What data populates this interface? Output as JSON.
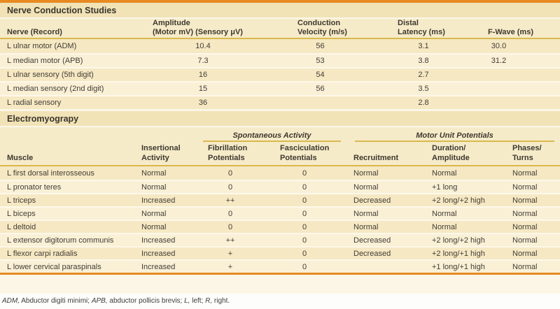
{
  "colors": {
    "accent_orange": "#e78a21",
    "rule_gold": "#d9b84e",
    "section_band_bg": "#f1e3b6",
    "header_band_bg": "#f6ebc9",
    "row_dark": "#f5e8c3",
    "row_light": "#f9f0d6",
    "text": "#433d35"
  },
  "ncs": {
    "title": "Nerve Conduction Studies",
    "headers": [
      {
        "line1": "",
        "line2": "Nerve (Record)"
      },
      {
        "line1": "Amplitude",
        "line2": "(Motor mV) (Sensory μV)"
      },
      {
        "line1": "Conduction",
        "line2": "Velocity (m/s)"
      },
      {
        "line1": "Distal",
        "line2": "Latency (ms)"
      },
      {
        "line1": "",
        "line2": "F-Wave (ms)"
      }
    ],
    "rows": [
      {
        "cells": [
          "L ulnar motor (ADM)",
          "10.4",
          "56",
          "3.1",
          "30.0"
        ]
      },
      {
        "cells": [
          "L median motor (APB)",
          "7.3",
          "53",
          "3.8",
          "31.2"
        ]
      },
      {
        "cells": [
          "L ulnar sensory (5th digit)",
          "16",
          "54",
          "2.7",
          ""
        ]
      },
      {
        "cells": [
          "L median sensory (2nd digit)",
          "15",
          "56",
          "3.5",
          ""
        ]
      },
      {
        "cells": [
          "L radial sensory",
          "36",
          "",
          "2.8",
          ""
        ]
      }
    ]
  },
  "emg": {
    "title": "Electromyograpy",
    "groups": {
      "spontaneous": "Spontaneous Activity",
      "motor_unit": "Motor Unit Potentials"
    },
    "headers": [
      {
        "line1": "",
        "line2": "Muscle"
      },
      {
        "line1": "Insertional",
        "line2": "Activity"
      },
      {
        "line1": "Fibrillation",
        "line2": "Potentials"
      },
      {
        "line1": "Fasciculation",
        "line2": "Potentials"
      },
      {
        "line1": "",
        "line2": "Recruitment"
      },
      {
        "line1": "Duration/",
        "line2": "Amplitude"
      },
      {
        "line1": "Phases/",
        "line2": "Turns"
      }
    ],
    "rows": [
      {
        "cells": [
          "L first dorsal interosseous",
          "Normal",
          "0",
          "0",
          "Normal",
          "Normal",
          "Normal"
        ]
      },
      {
        "cells": [
          "L pronator teres",
          "Normal",
          "0",
          "0",
          "Normal",
          "+1 long",
          "Normal"
        ]
      },
      {
        "cells": [
          "L triceps",
          "Increased",
          "++",
          "0",
          "Decreased",
          "+2 long/+2 high",
          "Normal"
        ]
      },
      {
        "cells": [
          "L biceps",
          "Normal",
          "0",
          "0",
          "Normal",
          "Normal",
          "Normal"
        ]
      },
      {
        "cells": [
          "L deltoid",
          "Normal",
          "0",
          "0",
          "Normal",
          "Normal",
          "Normal"
        ]
      },
      {
        "cells": [
          "L extensor digitorum communis",
          "Increased",
          "++",
          "0",
          "Decreased",
          "+2 long/+2 high",
          "Normal"
        ]
      },
      {
        "cells": [
          "L flexor carpi radialis",
          "Increased",
          "+",
          "0",
          "Decreased",
          "+2 long/+1 high",
          "Normal"
        ]
      },
      {
        "cells": [
          "L lower cervical paraspinals",
          "Increased",
          "+",
          "0",
          "",
          "+1 long/+1 high",
          "Normal"
        ]
      }
    ]
  },
  "footnote": {
    "segments": [
      {
        "text": "ADM,",
        "italic": true
      },
      {
        "text": " Abductor digiti minimi; ",
        "italic": false
      },
      {
        "text": "APB,",
        "italic": true
      },
      {
        "text": " abductor pollicis brevis; ",
        "italic": false
      },
      {
        "text": "L,",
        "italic": true
      },
      {
        "text": " left; ",
        "italic": false
      },
      {
        "text": "R,",
        "italic": true
      },
      {
        "text": " right.",
        "italic": false
      }
    ]
  }
}
